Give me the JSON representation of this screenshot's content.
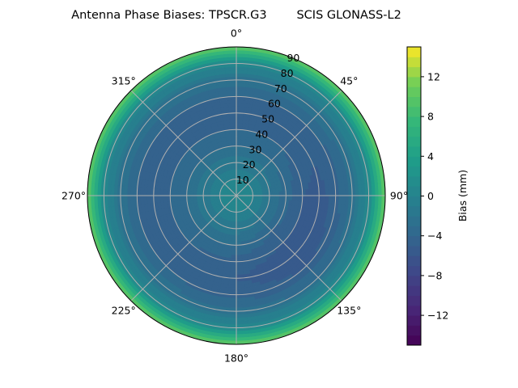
{
  "chart_data": {
    "type": "heatmap",
    "projection": "polar",
    "title": "Antenna Phase Biases: TPSCR.G3        SCIS GLONASS-L2",
    "theta_direction": "clockwise",
    "theta_zero": "top",
    "theta_tick_labels": [
      "0°",
      "45°",
      "90°",
      "135°",
      "180°",
      "225°",
      "270°",
      "315°"
    ],
    "theta_ticks": [
      0,
      45,
      90,
      135,
      180,
      225,
      270,
      315
    ],
    "r_ticks": [
      10,
      20,
      30,
      40,
      50,
      60,
      70,
      80,
      90
    ],
    "r_tick_labels": [
      "10",
      "20",
      "30",
      "40",
      "50",
      "60",
      "70",
      "80",
      "90"
    ],
    "rlim": [
      0,
      90
    ],
    "grid": true,
    "colormap": "viridis",
    "colorbar": {
      "label": "Bias (mm)",
      "range": [
        -15,
        15
      ],
      "level_step": 1,
      "ticks": [
        -12,
        -8,
        -4,
        0,
        4,
        8,
        12
      ],
      "tick_labels": [
        "−12",
        "−8",
        "−4",
        "0",
        "4",
        "8",
        "12"
      ]
    },
    "zenith": [
      0,
      10,
      20,
      30,
      40,
      50,
      60,
      70,
      80,
      90
    ],
    "azimuth": [
      0,
      45,
      90,
      135,
      180,
      225,
      270,
      315
    ],
    "values": [
      [
        0.5,
        0,
        -1.5,
        -3,
        -4,
        -4.5,
        -4,
        -2.5,
        1,
        10
      ],
      [
        0.5,
        0,
        -1.5,
        -3,
        -4,
        -4.5,
        -4,
        -2.5,
        1,
        10
      ],
      [
        0.5,
        0,
        -2,
        -3.5,
        -5,
        -5.5,
        -4.5,
        -2.5,
        1,
        10
      ],
      [
        0.5,
        0,
        -2,
        -4,
        -5,
        -6,
        -5,
        -3,
        1,
        10
      ],
      [
        0.5,
        0,
        -1.5,
        -3,
        -4.5,
        -5,
        -4.5,
        -2.5,
        1,
        10
      ],
      [
        0.5,
        0,
        -1.5,
        -3,
        -4,
        -4.5,
        -4,
        -2.5,
        1,
        10
      ],
      [
        0.5,
        0,
        -1.5,
        -3,
        -4,
        -4.5,
        -4,
        -2.5,
        1,
        10
      ],
      [
        0.5,
        0,
        -1.5,
        -3,
        -4,
        -4.5,
        -4,
        -2.5,
        1,
        10
      ]
    ]
  }
}
